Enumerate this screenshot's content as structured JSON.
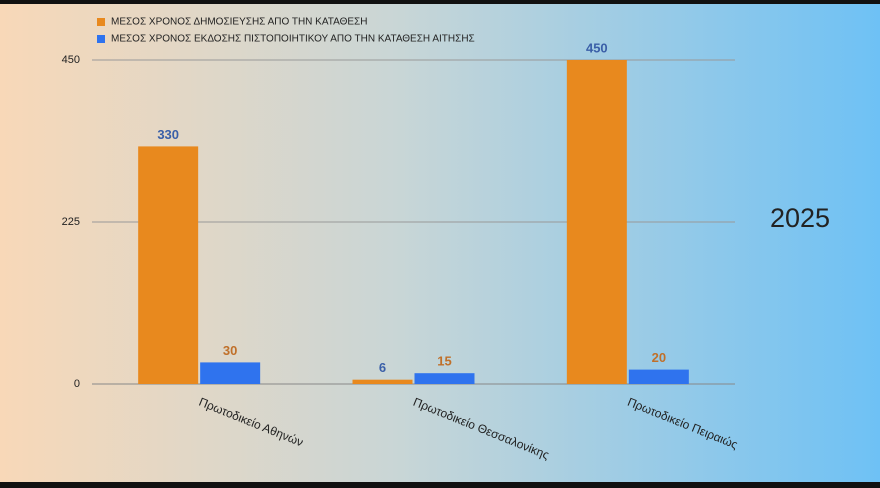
{
  "chart_data": {
    "type": "bar",
    "annotation": "2025",
    "categories": [
      "Πρωτοδικείο Αθηνών",
      "Πρωτοδικείο Θεσσαλονίκης",
      "Πρωτοδικείο Πειραιώς"
    ],
    "series": [
      {
        "name": "ΜΕΣΟΣ ΧΡΟΝΟΣ ΔΗΜΟΣΙΕΥΣΗΣ ΑΠΟ ΤΗΝ ΚΑΤΑΘΕΣΗ",
        "color": "#e8891e",
        "label_color": "#3a5fa8",
        "values": [
          330,
          6,
          450
        ]
      },
      {
        "name": "ΜΕΣΟΣ ΧΡΟΝΟΣ ΕΚΔΟΣΗΣ ΠΙΣΤΟΠΟΙΗΤΙΚΟΥ ΑΠΟ ΤΗΝ ΚΑΤΑΘΕΣΗ ΑΙΤΗΣΗΣ",
        "color": "#2f73ee",
        "label_color": "#c0702a",
        "values": [
          30,
          15,
          20
        ]
      }
    ],
    "ylim": [
      0,
      450
    ],
    "yticks": [
      0,
      225,
      450
    ],
    "grid": true
  }
}
